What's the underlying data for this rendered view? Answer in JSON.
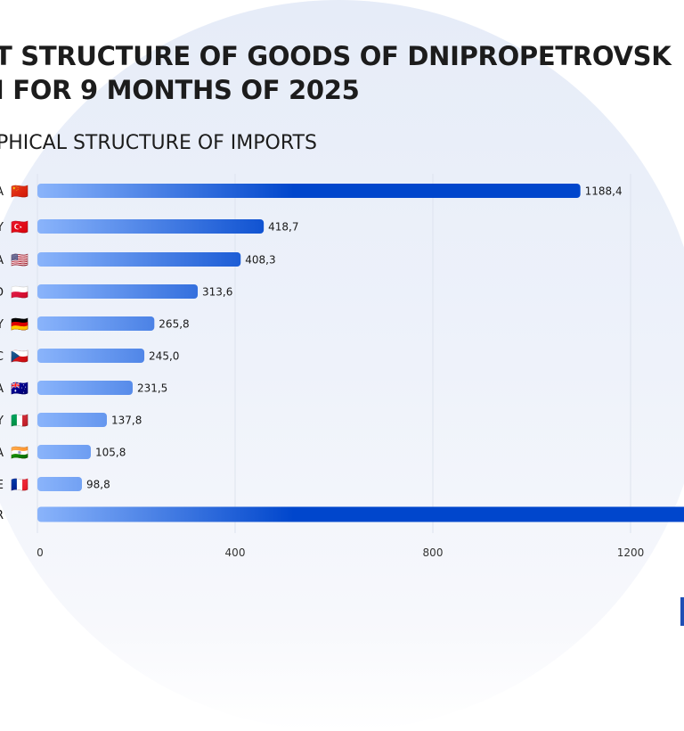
{
  "header": {
    "title_line1": "T STRUCTURE OF GOODS OF DNIPROPETROVSK",
    "title_line2": "I FOR 9 MONTHS OF 2025",
    "subtitle": "PHICAL STRUCTURE OF IMPORTS"
  },
  "colors": {
    "bar_start": "#8ab4fb",
    "bar_end": "#0046cc",
    "grid": "#dde3ee",
    "background_circle": "#e8eef9",
    "corner_mark": "#1f4fb5"
  },
  "chart_data": {
    "type": "bar",
    "orientation": "horizontal",
    "title": "T STRUCTURE OF GOODS OF DNIPROPETROVSK I FOR 9 MONTHS OF 2025",
    "subtitle": "PHICAL STRUCTURE OF IMPORTS",
    "xlabel": "",
    "ylabel": "",
    "xlim": [
      0,
      1300
    ],
    "xticks": [
      "0",
      "400",
      "800",
      "1200"
    ],
    "grid": true,
    "categories": [
      {
        "label": "A",
        "flag": "🇨🇳",
        "flag_name": "china-flag-icon"
      },
      {
        "label": "Y",
        "flag": "🇹🇷",
        "flag_name": "turkey-flag-icon"
      },
      {
        "label": "A",
        "flag": "🇺🇸",
        "flag_name": "usa-flag-icon"
      },
      {
        "label": "D",
        "flag": "🇵🇱",
        "flag_name": "poland-flag-icon"
      },
      {
        "label": "Y",
        "flag": "🇩🇪",
        "flag_name": "germany-flag-icon"
      },
      {
        "label": "C",
        "flag": "🇨🇿",
        "flag_name": "czech-flag-icon"
      },
      {
        "label": "A",
        "flag": "🇦🇺",
        "flag_name": "australia-flag-icon"
      },
      {
        "label": "Y",
        "flag": "🇮🇹",
        "flag_name": "italy-flag-icon"
      },
      {
        "label": "A",
        "flag": "🇮🇳",
        "flag_name": "india-flag-icon"
      },
      {
        "label": "E",
        "flag": "🇫🇷",
        "flag_name": "france-flag-icon"
      },
      {
        "label": "R",
        "flag": "",
        "flag_name": ""
      }
    ],
    "values": [
      1188.4,
      418.7,
      408.3,
      313.6,
      265.8,
      245.0,
      231.5,
      137.8,
      105.8,
      98.8,
      null
    ],
    "value_labels": [
      "1188,4",
      "418,7",
      "408,3",
      "313,6",
      "265,8",
      "245,0",
      "231,5",
      "137,8",
      "105,8",
      "98,8",
      ""
    ],
    "note": "last bar extends beyond the visible area; its value is not shown"
  }
}
